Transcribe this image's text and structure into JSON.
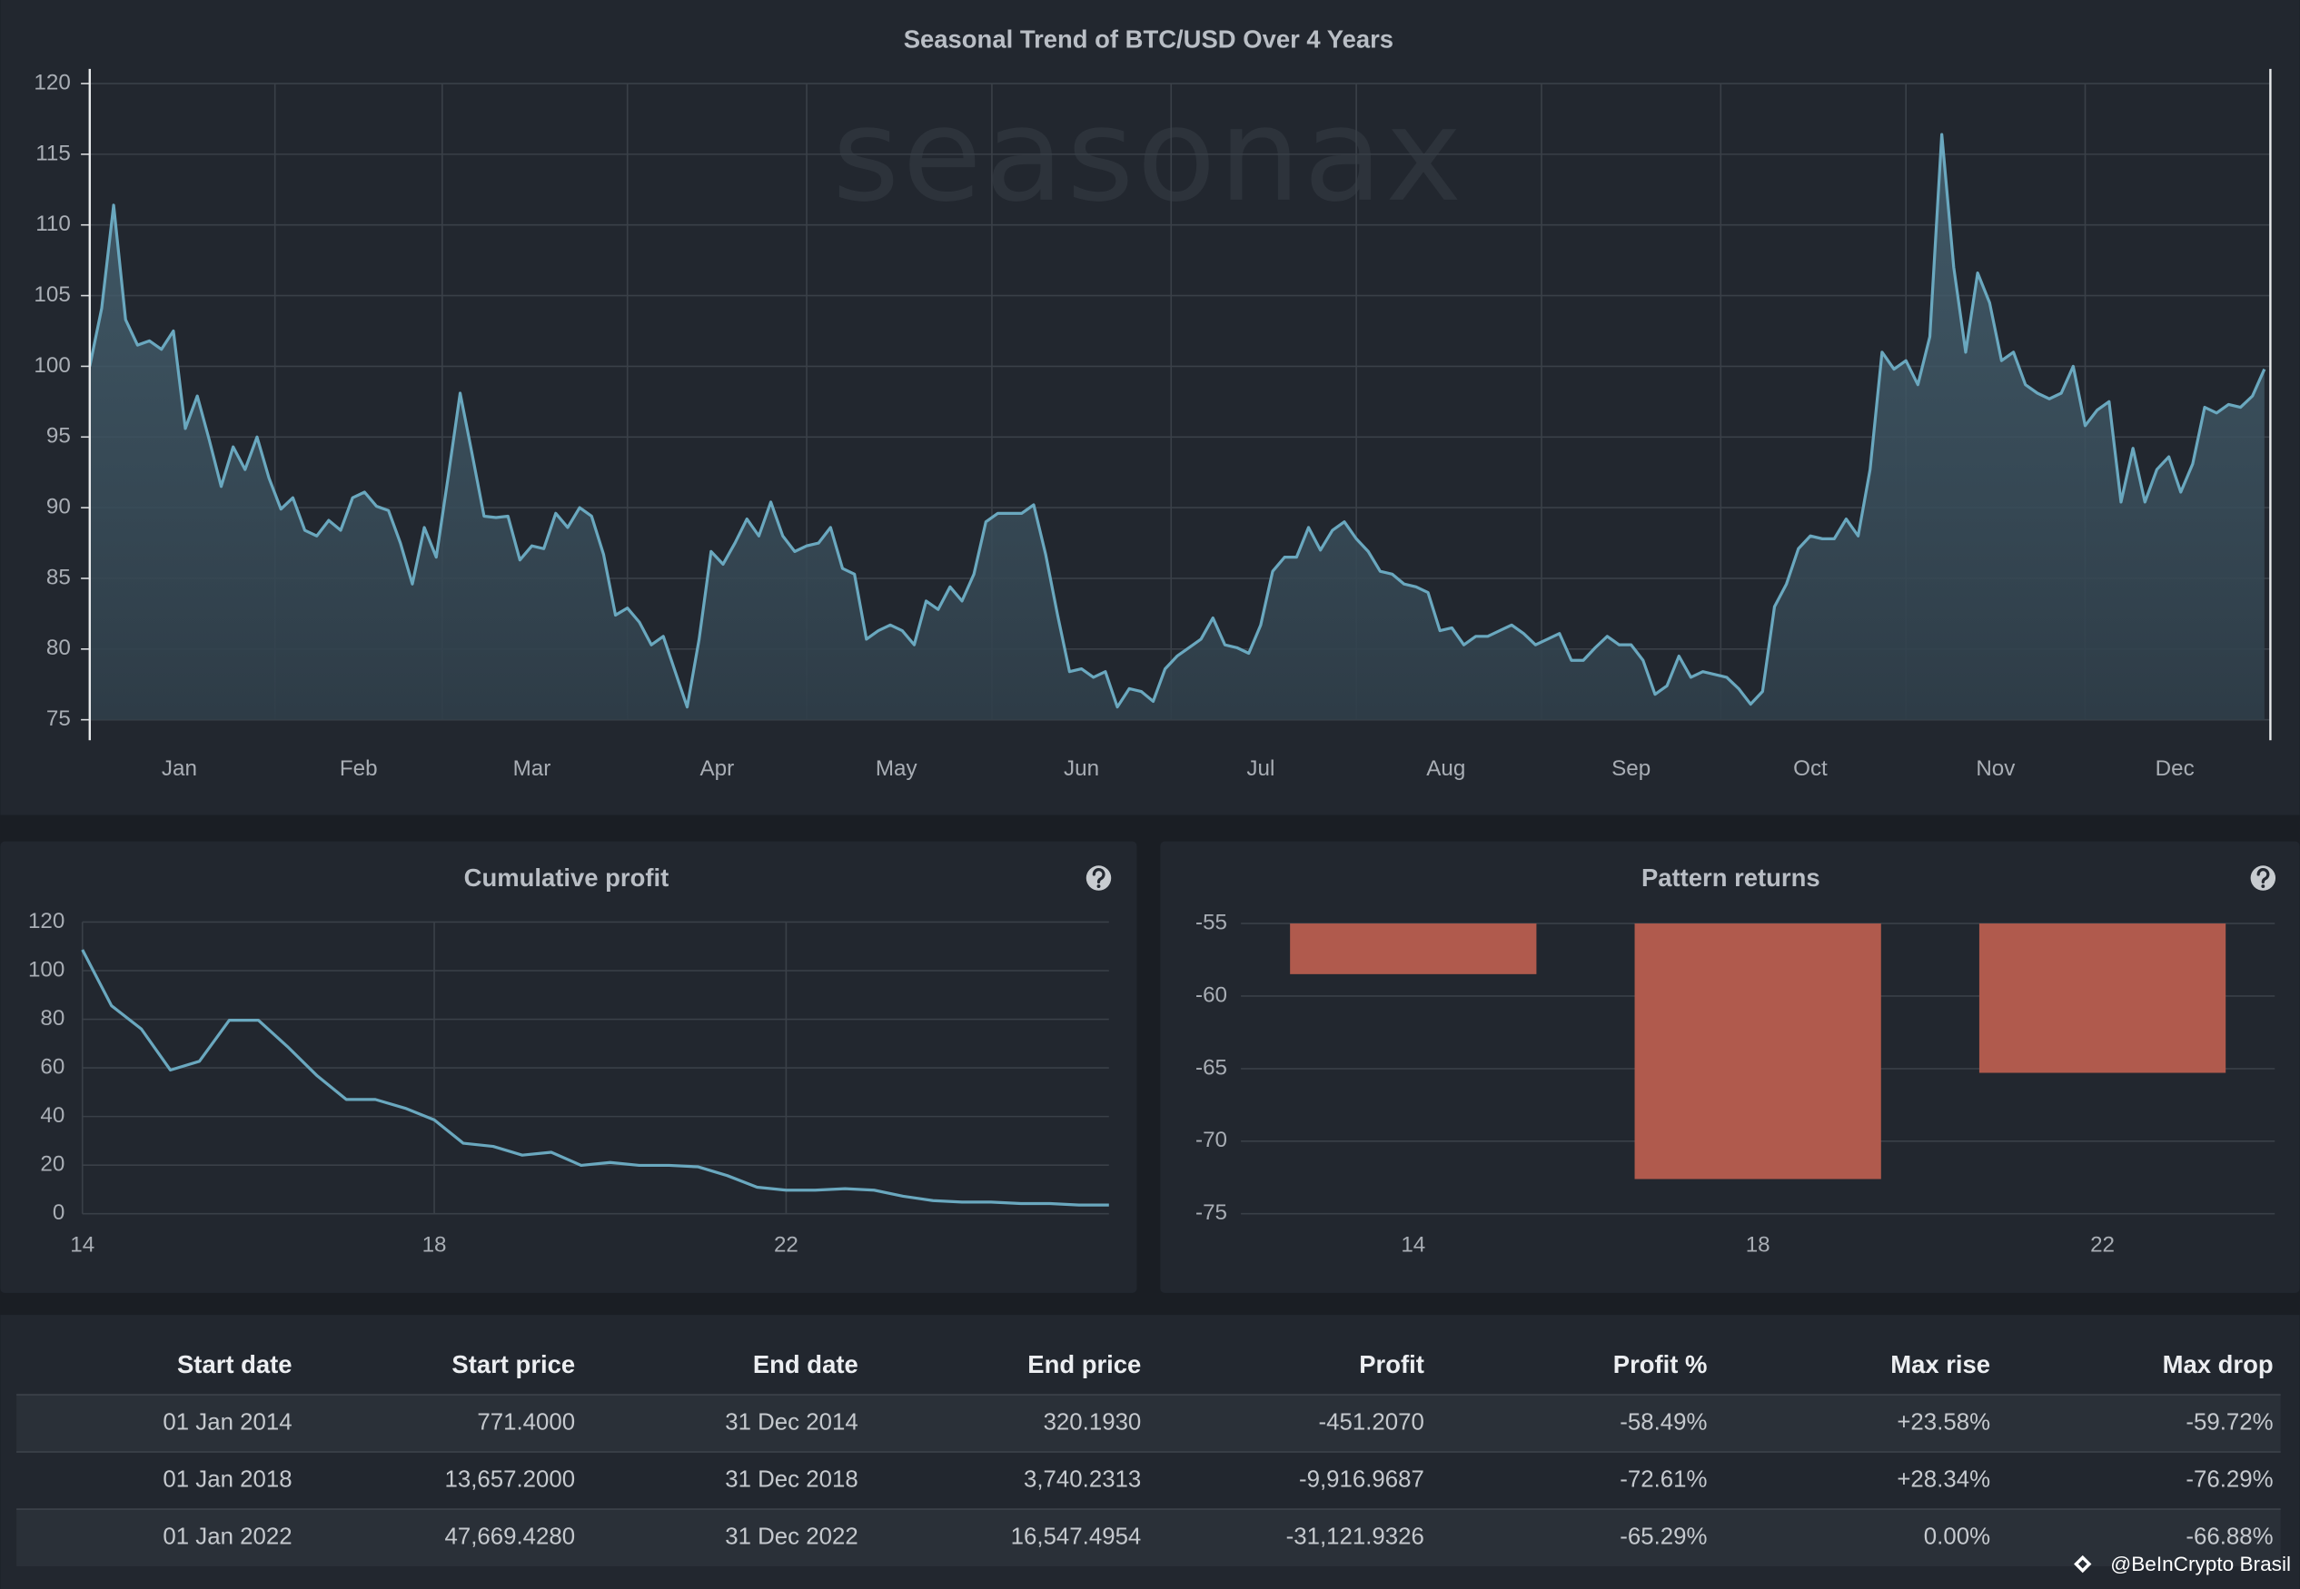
{
  "chart_data": [
    {
      "type": "line",
      "title": "Seasonal Trend of BTC/USD Over 4 Years",
      "fill": true,
      "color": "#6aa8bf",
      "x": [
        1,
        3,
        5,
        7,
        9,
        11,
        13,
        15,
        17,
        19,
        21,
        23,
        25,
        27,
        29,
        31,
        33,
        35,
        37,
        39,
        41,
        43,
        45,
        47,
        49,
        51,
        53,
        55,
        57,
        59,
        61,
        63,
        65,
        67,
        69,
        71,
        73,
        75,
        77,
        79,
        81,
        83,
        85,
        87,
        89,
        91,
        93,
        95,
        97,
        99,
        101,
        103,
        105,
        107,
        109,
        111,
        113,
        115,
        117,
        119,
        121,
        123,
        125,
        127,
        129,
        131,
        133,
        135,
        137,
        139,
        141,
        143,
        145,
        147,
        149,
        151,
        153,
        155,
        157,
        159,
        161,
        163,
        165,
        167,
        169,
        171,
        173,
        175,
        177,
        179,
        181,
        183,
        185,
        187,
        189,
        191,
        193,
        195,
        197,
        199,
        201,
        203,
        205,
        207,
        209,
        211,
        213,
        215,
        217,
        219,
        221,
        223,
        225,
        227,
        229,
        231,
        233,
        235,
        237,
        239,
        241,
        243,
        245,
        247,
        249,
        251,
        253,
        255,
        257,
        259,
        261,
        263,
        265,
        267,
        269,
        271,
        273,
        275,
        277,
        279,
        281,
        283,
        285,
        287,
        289,
        291,
        293,
        295,
        297,
        299,
        301,
        303,
        305,
        307,
        309,
        311,
        313,
        315,
        317,
        319,
        321,
        323,
        325,
        327,
        329,
        331,
        333,
        335,
        337,
        339,
        341,
        343,
        345,
        347,
        349,
        351,
        353,
        355,
        357,
        359,
        361,
        363,
        365
      ],
      "values": [
        100.0,
        104.1,
        111.4,
        103.3,
        101.5,
        101.8,
        101.2,
        102.5,
        95.6,
        97.9,
        94.8,
        91.5,
        94.3,
        92.7,
        95.0,
        92.1,
        89.9,
        90.7,
        88.4,
        88.0,
        89.1,
        88.4,
        90.7,
        91.1,
        90.1,
        89.8,
        87.5,
        84.6,
        88.6,
        86.5,
        92.2,
        98.1,
        93.8,
        89.4,
        89.3,
        89.4,
        86.3,
        87.3,
        87.1,
        89.6,
        88.6,
        90.0,
        89.4,
        86.7,
        82.4,
        82.9,
        81.9,
        80.3,
        80.9,
        78.4,
        75.9,
        80.7,
        86.9,
        86.0,
        87.5,
        89.2,
        88.0,
        90.4,
        88.0,
        86.9,
        87.3,
        87.5,
        88.6,
        85.7,
        85.3,
        80.7,
        81.3,
        81.7,
        81.3,
        80.3,
        83.4,
        82.8,
        84.4,
        83.4,
        85.3,
        89.0,
        89.6,
        89.6,
        89.6,
        90.2,
        86.7,
        82.4,
        78.4,
        78.6,
        78.0,
        78.4,
        75.9,
        77.2,
        77.0,
        76.3,
        78.6,
        79.5,
        80.1,
        80.7,
        82.2,
        80.3,
        80.1,
        79.7,
        81.7,
        85.5,
        86.5,
        86.5,
        88.6,
        87.0,
        88.4,
        89.0,
        87.8,
        86.9,
        85.5,
        85.3,
        84.6,
        84.4,
        84.0,
        81.3,
        81.5,
        80.3,
        80.9,
        80.9,
        81.3,
        81.7,
        81.1,
        80.3,
        80.7,
        81.1,
        79.2,
        79.2,
        80.1,
        80.9,
        80.3,
        80.3,
        79.2,
        76.8,
        77.4,
        79.5,
        78.0,
        78.4,
        78.2,
        78.0,
        77.2,
        76.1,
        77.0,
        83.0,
        84.6,
        87.1,
        88.0,
        87.8,
        87.8,
        89.2,
        88.0,
        92.7,
        101.0,
        99.8,
        100.4,
        98.7,
        102.1,
        116.4,
        107.0,
        101.0,
        106.6,
        104.5,
        100.4,
        101.0,
        98.7,
        98.1,
        97.7,
        98.1,
        100.0,
        95.8,
        96.9,
        97.5,
        90.4,
        94.2,
        90.4,
        92.7,
        93.6,
        91.1,
        93.1,
        97.1,
        96.7,
        97.3,
        97.1,
        97.9,
        99.8
      ],
      "xlim": [
        1,
        366
      ],
      "xticks": [
        {
          "value": 16,
          "label": "Jan"
        },
        {
          "value": 46,
          "label": "Feb"
        },
        {
          "value": 75,
          "label": "Mar"
        },
        {
          "value": 106,
          "label": "Apr"
        },
        {
          "value": 136,
          "label": "May"
        },
        {
          "value": 167,
          "label": "Jun"
        },
        {
          "value": 197,
          "label": "Jul"
        },
        {
          "value": 228,
          "label": "Aug"
        },
        {
          "value": 259,
          "label": "Sep"
        },
        {
          "value": 289,
          "label": "Oct"
        },
        {
          "value": 320,
          "label": "Nov"
        },
        {
          "value": 350,
          "label": "Dec"
        }
      ],
      "xgrid": [
        32,
        60,
        91,
        121,
        152,
        182,
        213,
        244,
        274,
        305,
        335
      ],
      "ylim": [
        75,
        120
      ],
      "yticks": [
        75,
        80,
        85,
        90,
        95,
        100,
        105,
        110,
        115,
        120
      ],
      "grid": true
    },
    {
      "type": "line",
      "title": "Cumulative profit",
      "fill": false,
      "color": "#6aa8bf",
      "x": [
        14,
        14.33,
        14.67,
        15,
        15.33,
        15.67,
        16,
        16.33,
        16.67,
        17,
        17.33,
        17.67,
        18,
        18.33,
        18.67,
        19,
        19.33,
        19.67,
        20,
        20.33,
        20.67,
        21,
        21.33,
        21.67,
        22,
        22.33,
        22.67,
        23,
        23.33,
        23.67,
        24,
        24.33,
        24.67,
        25,
        25.33,
        25.67
      ],
      "values": [
        108.6,
        85.6,
        76.0,
        59.1,
        62.7,
        79.6,
        79.6,
        68.8,
        56.7,
        47.0,
        47.0,
        43.4,
        38.6,
        29.0,
        27.7,
        24.1,
        25.3,
        19.9,
        21.1,
        19.9,
        19.9,
        19.3,
        15.7,
        10.9,
        9.7,
        9.7,
        10.3,
        9.7,
        7.2,
        5.4,
        4.8,
        4.8,
        4.2,
        4.2,
        3.6,
        3.6
      ],
      "xlim": [
        14,
        25.67
      ],
      "xticks": [
        14,
        18,
        22
      ],
      "xgrid": true,
      "ylim": [
        0,
        120
      ],
      "yticks": [
        0,
        20,
        40,
        60,
        80,
        100,
        120
      ],
      "grid": true
    },
    {
      "type": "bar",
      "title": "Pattern returns",
      "color": "#b05a4d",
      "categories": [
        "14",
        "18",
        "22"
      ],
      "values": [
        -58.49,
        -72.61,
        -65.29
      ],
      "ylim": [
        -75,
        -55
      ],
      "yticks": [
        -75,
        -70,
        -65,
        -60,
        -55
      ],
      "grid": true
    }
  ],
  "watermark": "seasonax",
  "table": {
    "columns": [
      "Start date",
      "Start price",
      "End date",
      "End price",
      "Profit",
      "Profit %",
      "Max rise",
      "Max drop"
    ],
    "rows": [
      [
        "01 Jan 2014",
        "771.4000",
        "31 Dec 2014",
        "320.1930",
        "-451.2070",
        "-58.49%",
        "+23.58%",
        "-59.72%"
      ],
      [
        "01 Jan 2018",
        "13,657.2000",
        "31 Dec 2018",
        "3,740.2313",
        "-9,916.9687",
        "-72.61%",
        "+28.34%",
        "-76.29%"
      ],
      [
        "01 Jan 2022",
        "47,669.4280",
        "31 Dec 2022",
        "16,547.4954",
        "-31,121.9326",
        "-65.29%",
        "0.00%",
        "-66.88%"
      ]
    ]
  },
  "credit": "@BeInCrypto Brasil"
}
